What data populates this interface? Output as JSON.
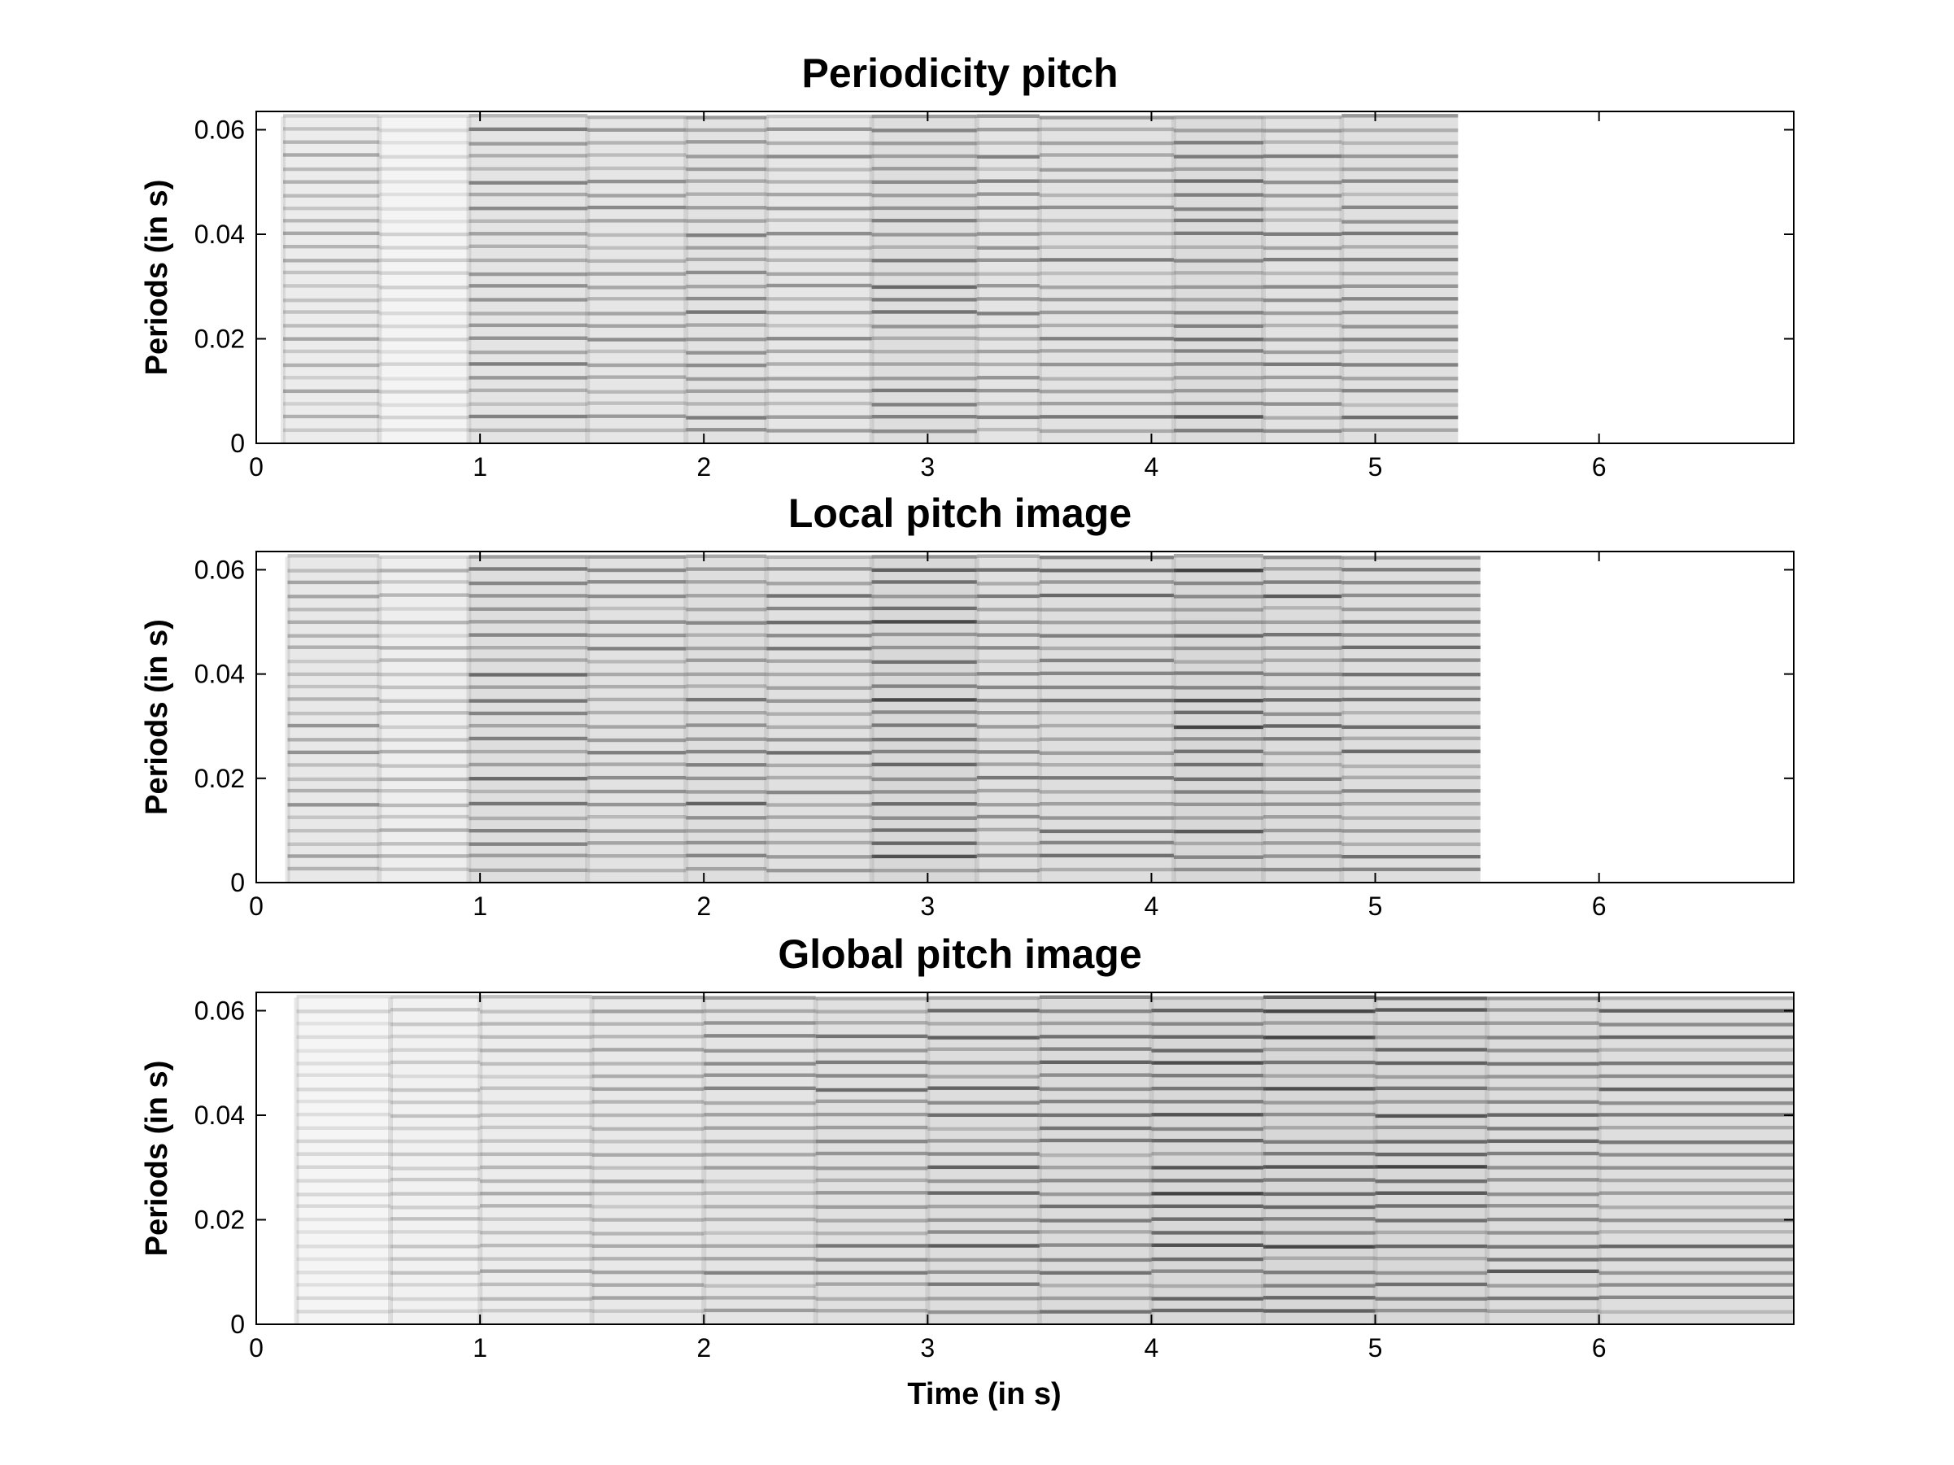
{
  "chart_data": [
    {
      "type": "heatmap",
      "title": "Periodicity pitch",
      "xlabel": "",
      "ylabel": "Periods (in s)",
      "xlim": [
        0,
        6.87
      ],
      "ylim": [
        0,
        0.0635
      ],
      "xticks": [
        0,
        1,
        2,
        3,
        4,
        5,
        6
      ],
      "yticks": [
        0,
        0.02,
        0.04,
        0.06
      ],
      "yticklabels": [
        "0",
        "0.02",
        "0.04",
        "0.06"
      ],
      "colormap": "grayscale (dark = high)",
      "data_extent_x": [
        0.12,
        5.37
      ],
      "data_extent_y": [
        0,
        0.0625
      ],
      "band_period_step": 0.0025,
      "segment_boundaries": [
        0.12,
        0.55,
        0.95,
        1.48,
        1.92,
        2.28,
        2.75,
        3.22,
        3.5,
        4.1,
        4.5,
        4.85,
        5.37
      ],
      "segment_intensity": [
        0.35,
        0.15,
        0.55,
        0.5,
        0.6,
        0.5,
        0.7,
        0.55,
        0.6,
        0.75,
        0.6,
        0.65
      ]
    },
    {
      "type": "heatmap",
      "title": "Local pitch image",
      "xlabel": "",
      "ylabel": "Periods (in s)",
      "xlim": [
        0,
        6.87
      ],
      "ylim": [
        0,
        0.0635
      ],
      "xticks": [
        0,
        1,
        2,
        3,
        4,
        5,
        6
      ],
      "yticks": [
        0,
        0.02,
        0.04,
        0.06
      ],
      "yticklabels": [
        "0",
        "0.02",
        "0.04",
        "0.06"
      ],
      "colormap": "grayscale (dark = high)",
      "data_extent_x": [
        0.14,
        5.47
      ],
      "data_extent_y": [
        0,
        0.0625
      ],
      "band_period_step": 0.0025,
      "segment_boundaries": [
        0.14,
        0.55,
        0.95,
        1.48,
        1.92,
        2.28,
        2.75,
        3.22,
        3.5,
        4.1,
        4.5,
        4.85,
        5.47
      ],
      "segment_intensity": [
        0.45,
        0.3,
        0.7,
        0.6,
        0.7,
        0.65,
        0.85,
        0.65,
        0.7,
        0.85,
        0.75,
        0.7
      ]
    },
    {
      "type": "heatmap",
      "title": "Global pitch image",
      "xlabel": "Time (in s)",
      "ylabel": "Periods (in s)",
      "xlim": [
        0,
        6.87
      ],
      "ylim": [
        0,
        0.0635
      ],
      "xticks": [
        0,
        1,
        2,
        3,
        4,
        5,
        6
      ],
      "yticks": [
        0,
        0.02,
        0.04,
        0.06
      ],
      "yticklabels": [
        "0",
        "0.02",
        "0.04",
        "0.06"
      ],
      "colormap": "grayscale (dark = high)",
      "data_extent_x": [
        0.18,
        6.87
      ],
      "data_extent_y": [
        0,
        0.0625
      ],
      "band_period_step": 0.0025,
      "segment_boundaries": [
        0.18,
        0.6,
        1.0,
        1.5,
        2.0,
        2.5,
        3.0,
        3.5,
        4.0,
        4.5,
        5.0,
        5.5,
        6.0,
        6.87
      ],
      "segment_intensity": [
        0.12,
        0.22,
        0.35,
        0.45,
        0.55,
        0.65,
        0.72,
        0.78,
        0.85,
        0.88,
        0.85,
        0.75,
        0.7
      ]
    }
  ]
}
